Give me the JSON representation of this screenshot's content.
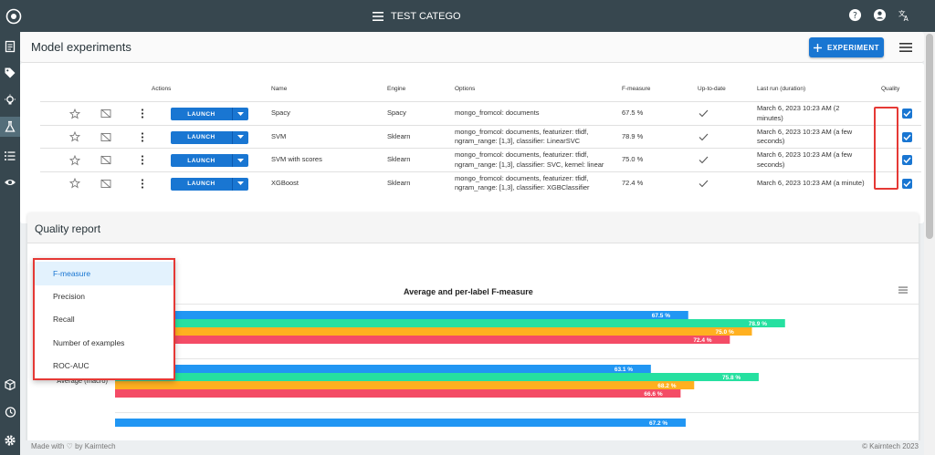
{
  "topbar": {
    "title": "TEST CATEGO"
  },
  "header": {
    "title": "Model experiments",
    "experiment_button": "EXPERIMENT"
  },
  "table": {
    "columns": [
      "Actions",
      "Name",
      "Engine",
      "Options",
      "F-measure",
      "Up-to-date",
      "Last run (duration)",
      "Quality"
    ],
    "launch_label": "LAUNCH",
    "rows": [
      {
        "name": "Spacy",
        "engine": "Spacy",
        "options_l1": "mongo_fromcol: documents",
        "options_l2": "",
        "fmeasure": "67.5 %",
        "last_l1": "March 6, 2023 10:23 AM (2",
        "last_l2": "minutes)"
      },
      {
        "name": "SVM",
        "engine": "Sklearn",
        "options_l1": "mongo_fromcol: documents, featurizer: tfidf,",
        "options_l2": "ngram_range: [1,3], classifier: LinearSVC",
        "fmeasure": "78.9 %",
        "last_l1": "March 6, 2023 10:23 AM (a few",
        "last_l2": "seconds)"
      },
      {
        "name": "SVM with scores",
        "engine": "Sklearn",
        "options_l1": "mongo_fromcol: documents, featurizer: tfidf,",
        "options_l2": "ngram_range: [1,3], classifier: SVC, kernel: linear",
        "fmeasure": "75.0 %",
        "last_l1": "March 6, 2023 10:23 AM (a few",
        "last_l2": "seconds)"
      },
      {
        "name": "XGBoost",
        "engine": "Sklearn",
        "options_l1": "mongo_fromcol: documents, featurizer: tfidf,",
        "options_l2": "ngram_range: [1,3], classifier: XGBClassifier",
        "fmeasure": "72.4 %",
        "last_l1": "March 6, 2023 10:23 AM (a minute)",
        "last_l2": ""
      }
    ]
  },
  "report": {
    "title": "Quality report",
    "metric_menu": [
      "F-measure",
      "Precision",
      "Recall",
      "Number of examples",
      "ROC-AUC"
    ]
  },
  "chart_data": {
    "type": "bar",
    "orientation": "horizontal",
    "title": "Average and per-label F-measure",
    "categories": [
      "",
      "Average (macro)",
      ""
    ],
    "series": [
      {
        "color": "#2196f3",
        "values": [
          67.5,
          63.1,
          67.2
        ],
        "labels": [
          "67.5 %",
          "63.1 %",
          "67.2 %"
        ]
      },
      {
        "color": "#26e0a0",
        "values": [
          78.9,
          75.8,
          null
        ],
        "labels": [
          "78.9 %",
          "75.8 %",
          ""
        ]
      },
      {
        "color": "#ffb020",
        "values": [
          75.0,
          68.2,
          null
        ],
        "labels": [
          "75.0 %",
          "68.2 %",
          ""
        ]
      },
      {
        "color": "#f44c66",
        "values": [
          72.4,
          66.6,
          null
        ],
        "labels": [
          "72.4 %",
          "66.6 %",
          ""
        ]
      }
    ]
  },
  "footer": {
    "left": "Made with ♡ by Kairntech",
    "right": "© Kairntech 2023"
  },
  "colors": {
    "primary": "#1976d2",
    "topbar": "#37474f",
    "highlight": "#e53935"
  }
}
